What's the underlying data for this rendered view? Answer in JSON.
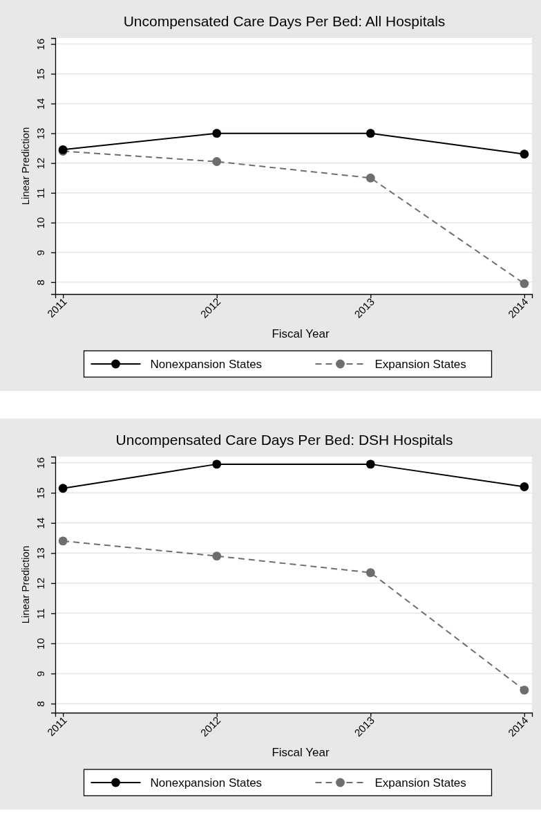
{
  "chart_data": [
    {
      "type": "line",
      "title": "Uncompensated Care Days Per Bed: All Hospitals",
      "xlabel": "Fiscal Year",
      "ylabel": "Linear Prediction",
      "x": [
        2011,
        2012,
        2013,
        2014
      ],
      "xlim": [
        2010.95,
        2014.05
      ],
      "xticks": [
        2011,
        2012,
        2013,
        2014
      ],
      "ylim": [
        7.6,
        16.2
      ],
      "yticks": [
        8,
        9,
        10,
        11,
        12,
        13,
        14,
        15,
        16
      ],
      "grid": "y",
      "legend": "bottom",
      "marker": "circle",
      "series": [
        {
          "name": "Nonexpansion States",
          "color": "#000000",
          "line_style": "solid",
          "values": [
            12.45,
            13.0,
            13.0,
            12.3
          ]
        },
        {
          "name": "Expansion States",
          "color": "#6e6e6e",
          "line_style": "dashed",
          "values": [
            12.4,
            12.05,
            11.5,
            7.95
          ]
        }
      ]
    },
    {
      "type": "line",
      "title": "Uncompensated Care Days Per Bed: DSH Hospitals",
      "xlabel": "Fiscal Year",
      "ylabel": "Linear Prediction",
      "x": [
        2011,
        2012,
        2013,
        2014
      ],
      "xlim": [
        2010.95,
        2014.05
      ],
      "xticks": [
        2011,
        2012,
        2013,
        2014
      ],
      "ylim": [
        7.7,
        16.2
      ],
      "yticks": [
        8,
        9,
        10,
        11,
        12,
        13,
        14,
        15,
        16
      ],
      "grid": "y",
      "legend": "bottom",
      "marker": "circle",
      "series": [
        {
          "name": "Nonexpansion States",
          "color": "#000000",
          "line_style": "solid",
          "values": [
            15.15,
            15.95,
            15.95,
            15.2
          ]
        },
        {
          "name": "Expansion States",
          "color": "#6e6e6e",
          "line_style": "dashed",
          "values": [
            13.4,
            12.9,
            12.35,
            8.45
          ]
        }
      ]
    }
  ]
}
